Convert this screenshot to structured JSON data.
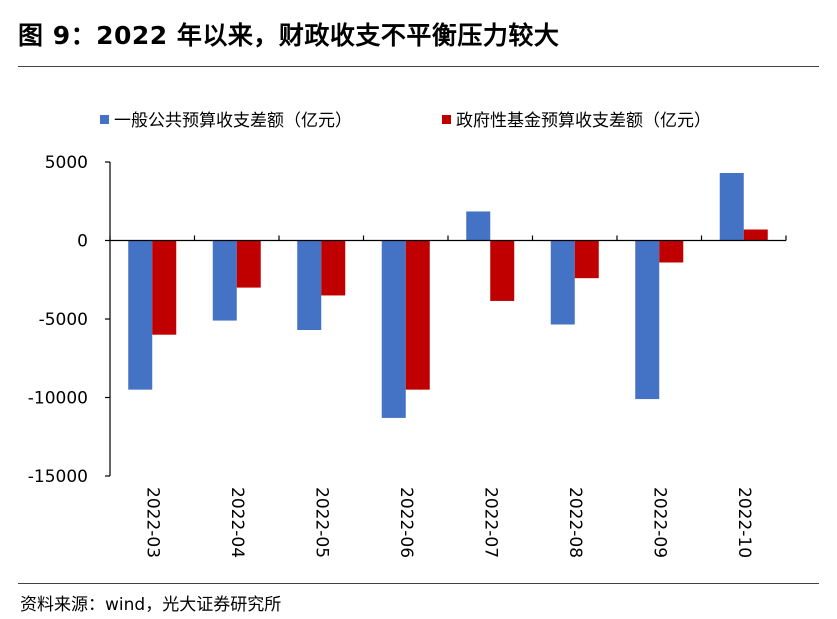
{
  "figure": {
    "title": "图 9：2022 年以来，财政收支不平衡压力较大",
    "source": "资料来源：wind，光大证券研究所"
  },
  "chart_data": {
    "type": "bar",
    "title": "",
    "xlabel": "",
    "ylabel": "",
    "categories": [
      "2022-03",
      "2022-04",
      "2022-05",
      "2022-06",
      "2022-07",
      "2022-08",
      "2022-09",
      "2022-10"
    ],
    "series": [
      {
        "name": "一般公共预算收支差额（亿元）",
        "color": "#4472C4",
        "values": [
          -9500,
          -5100,
          -5700,
          -11300,
          1850,
          -5350,
          -10100,
          4300
        ]
      },
      {
        "name": "政府性基金预算收支差额（亿元）",
        "color": "#C00000",
        "values": [
          -6000,
          -3000,
          -3500,
          -9500,
          -3850,
          -2400,
          -1400,
          700
        ]
      }
    ],
    "ylim": [
      -15000,
      5000
    ],
    "yticks": [
      5000,
      0,
      -5000,
      -10000,
      -15000
    ],
    "ytick_labels": [
      "5000",
      "0",
      "-5000",
      "-10000",
      "-15000"
    ],
    "grid": false,
    "legend_position": "top"
  }
}
